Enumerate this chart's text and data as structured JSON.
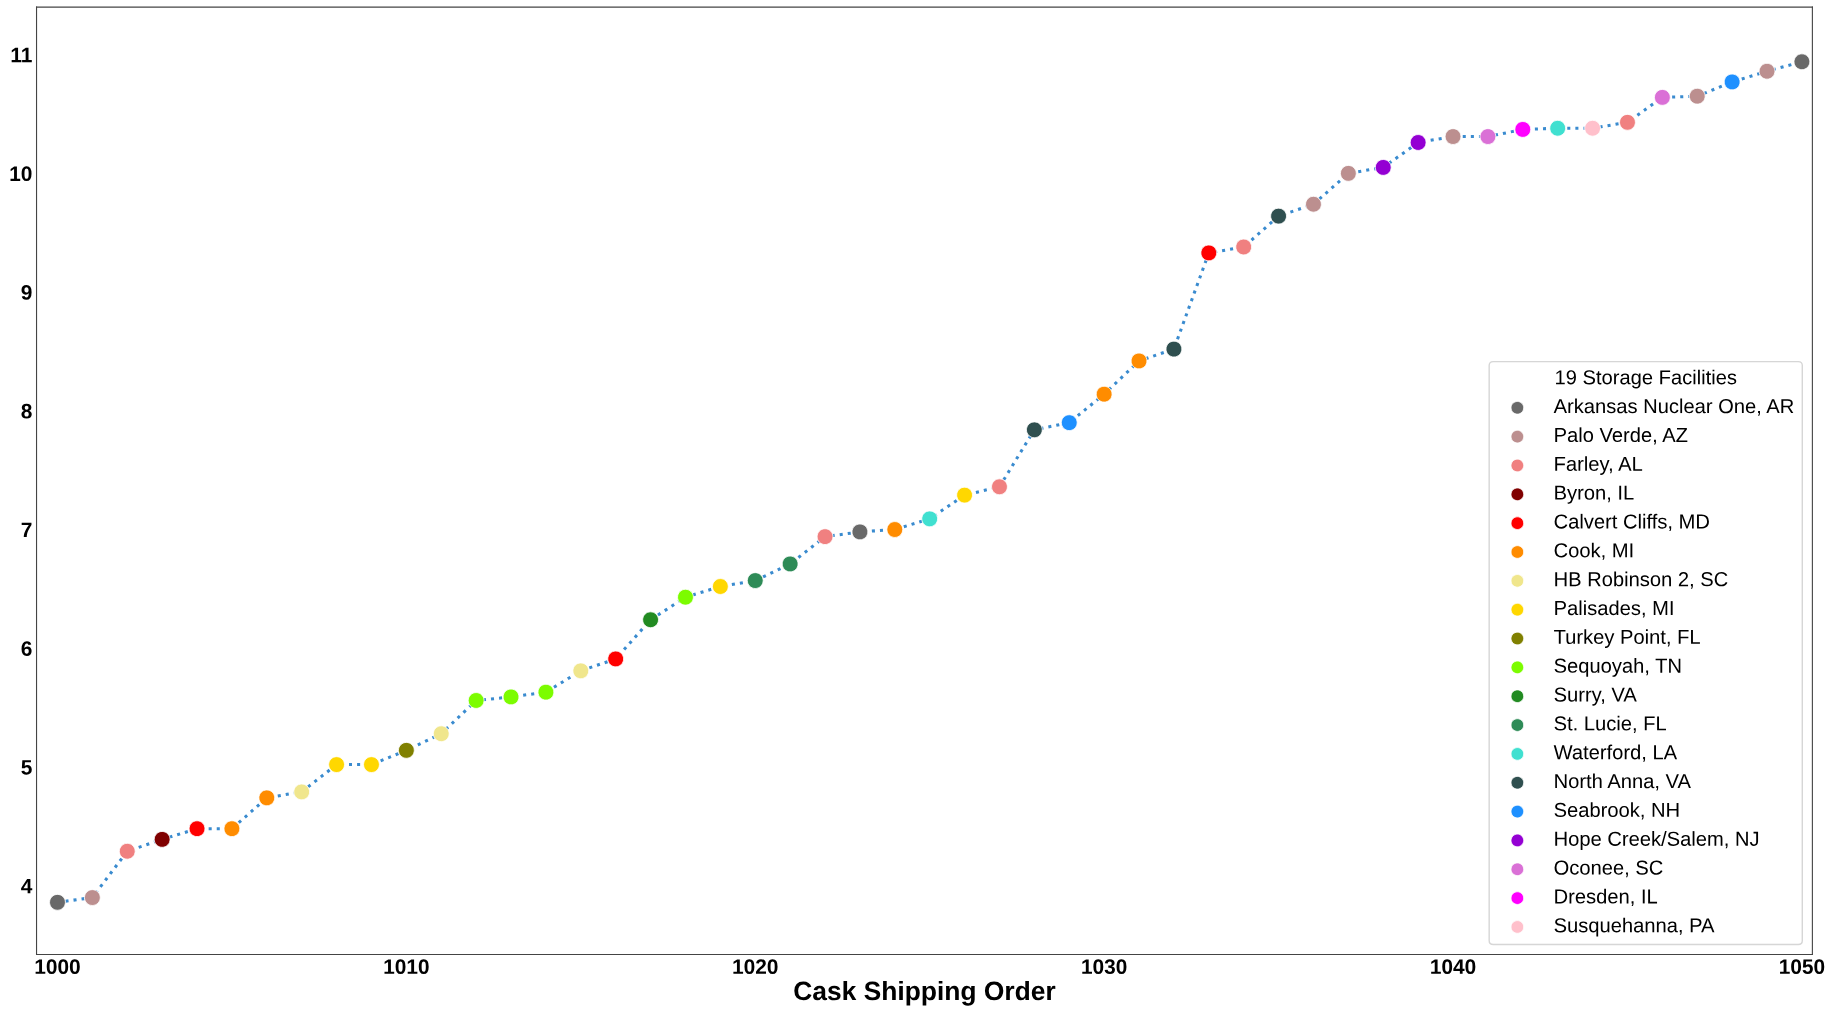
{
  "chart_data": {
    "type": "scatter",
    "xlabel": "Cask Shipping Order",
    "legend_title": "19 Storage Facilities",
    "legend": "bottom right",
    "grid": false,
    "xlim": [
      999.4,
      1050.3
    ],
    "xticks": [
      1000,
      1010,
      1020,
      1030,
      1040,
      1050
    ],
    "ylim": [
      3.42,
      11.4
    ],
    "yticks": [
      4,
      5,
      6,
      7,
      8,
      9,
      10,
      11
    ],
    "series": [
      {
        "type": "line",
        "line_style": "dotted",
        "color": "#3a8bcf",
        "x": [
          1000,
          1001,
          1002,
          1003,
          1004,
          1005,
          1006,
          1007,
          1008,
          1009,
          1010,
          1011,
          1012,
          1013,
          1014,
          1015,
          1016,
          1017,
          1018,
          1019,
          1020,
          1021,
          1022,
          1023,
          1024,
          1025,
          1026,
          1027,
          1028,
          1029,
          1030,
          1031,
          1032,
          1033,
          1034,
          1035,
          1036,
          1037,
          1038,
          1039,
          1040,
          1041,
          1042,
          1043,
          1044,
          1045,
          1046,
          1047,
          1048,
          1049,
          1050
        ],
        "values": [
          3.86,
          3.9,
          4.29,
          4.39,
          4.48,
          4.48,
          4.74,
          4.79,
          5.02,
          5.02,
          5.14,
          5.28,
          5.56,
          5.59,
          5.63,
          5.81,
          5.91,
          6.24,
          6.43,
          6.52,
          6.57,
          6.71,
          6.94,
          6.98,
          7.0,
          7.09,
          7.29,
          7.36,
          7.84,
          7.9,
          8.14,
          8.42,
          8.52,
          9.33,
          9.38,
          9.64,
          9.74,
          10.0,
          10.05,
          10.26,
          10.31,
          10.31,
          10.37,
          10.38,
          10.38,
          10.43,
          10.64,
          10.65,
          10.77,
          10.86,
          10.94
        ]
      },
      {
        "marker": "circle",
        "name": "Arkansas Nuclear One, AR",
        "color": "#696969",
        "x": [
          1000,
          1023,
          1050
        ],
        "values": [
          3.86,
          6.98,
          10.94
        ]
      },
      {
        "marker": "circle",
        "name": "Palo Verde, AZ",
        "color": "#bc8f8f",
        "x": [
          1001,
          1036,
          1037,
          1040,
          1047,
          1049
        ],
        "values": [
          3.9,
          9.74,
          10.0,
          10.31,
          10.65,
          10.86
        ]
      },
      {
        "marker": "circle",
        "name": "Farley, AL",
        "color": "#f08080",
        "x": [
          1002,
          1022,
          1027,
          1034,
          1045
        ],
        "values": [
          4.29,
          6.94,
          7.36,
          9.38,
          10.43
        ]
      },
      {
        "marker": "circle",
        "name": "Byron, IL",
        "color": "#800000",
        "x": [
          1003
        ],
        "values": [
          4.39
        ]
      },
      {
        "marker": "circle",
        "name": "Calvert Cliffs, MD",
        "color": "#ff0000",
        "x": [
          1004,
          1016,
          1033
        ],
        "values": [
          4.48,
          5.91,
          9.33
        ]
      },
      {
        "marker": "circle",
        "name": "Cook, MI",
        "color": "#ff8c00",
        "x": [
          1005,
          1006,
          1024,
          1030,
          1031
        ],
        "values": [
          4.48,
          4.74,
          7.0,
          8.14,
          8.42
        ]
      },
      {
        "marker": "circle",
        "name": "HB Robinson 2, SC",
        "color": "#f0e68c",
        "x": [
          1007,
          1011,
          1015
        ],
        "values": [
          4.79,
          5.28,
          5.81
        ]
      },
      {
        "marker": "circle",
        "name": "Palisades, MI",
        "color": "#ffd700",
        "x": [
          1008,
          1009,
          1019,
          1026
        ],
        "values": [
          5.02,
          5.02,
          6.52,
          7.29
        ]
      },
      {
        "marker": "circle",
        "name": "Turkey Point, FL",
        "color": "#808000",
        "x": [
          1010
        ],
        "values": [
          5.14
        ]
      },
      {
        "marker": "circle",
        "name": "Sequoyah, TN",
        "color": "#7cfc00",
        "x": [
          1012,
          1013,
          1014,
          1018
        ],
        "values": [
          5.56,
          5.59,
          5.63,
          6.43
        ]
      },
      {
        "marker": "circle",
        "name": "Surry, VA",
        "color": "#228b22",
        "x": [
          1017
        ],
        "values": [
          6.24
        ]
      },
      {
        "marker": "circle",
        "name": "St. Lucie, FL",
        "color": "#2e8b57",
        "x": [
          1020,
          1021
        ],
        "values": [
          6.57,
          6.71
        ]
      },
      {
        "marker": "circle",
        "name": "Waterford, LA",
        "color": "#40e0d0",
        "x": [
          1025,
          1043
        ],
        "values": [
          7.09,
          10.38
        ]
      },
      {
        "marker": "circle",
        "name": "North Anna, VA",
        "color": "#2f4f4f",
        "x": [
          1028,
          1032,
          1035
        ],
        "values": [
          7.84,
          8.52,
          9.64
        ]
      },
      {
        "marker": "circle",
        "name": "Seabrook, NH",
        "color": "#1e90ff",
        "x": [
          1029,
          1048
        ],
        "values": [
          7.9,
          10.77
        ]
      },
      {
        "marker": "circle",
        "name": "Hope Creek/Salem, NJ",
        "color": "#9400d3",
        "x": [
          1038,
          1039
        ],
        "values": [
          10.05,
          10.26
        ]
      },
      {
        "marker": "circle",
        "name": "Oconee, SC",
        "color": "#da70d6",
        "x": [
          1041,
          1046
        ],
        "values": [
          10.31,
          10.64
        ]
      },
      {
        "marker": "circle",
        "name": "Dresden, IL",
        "color": "#ff00ff",
        "x": [
          1042
        ],
        "values": [
          10.37
        ]
      },
      {
        "marker": "circle",
        "name": "Susquehanna, PA",
        "color": "#ffc0cb",
        "x": [
          1044
        ],
        "values": [
          10.38
        ]
      }
    ]
  }
}
